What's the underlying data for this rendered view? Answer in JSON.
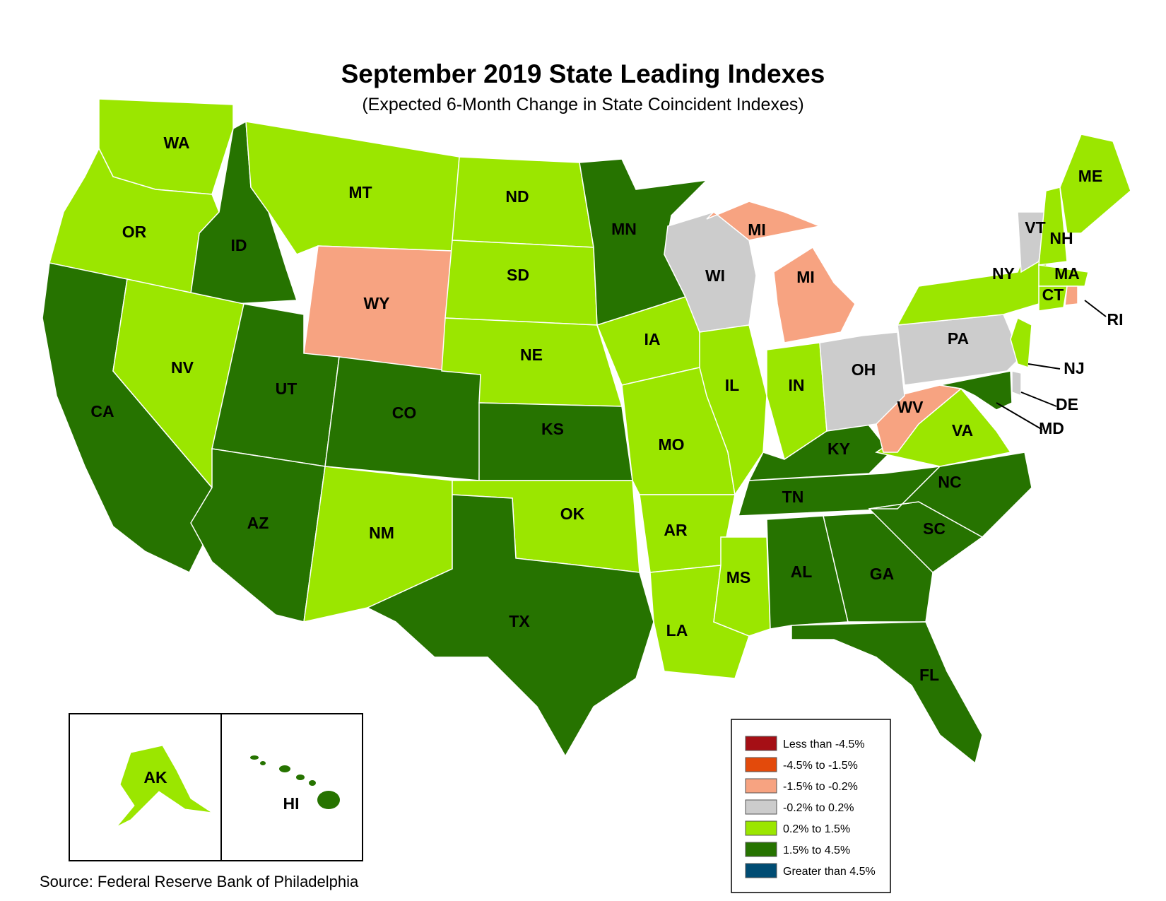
{
  "title": "September 2019 State Leading Indexes",
  "subtitle": "(Expected 6-Month Change in State Coincident Indexes)",
  "source": "Source: Federal Reserve Bank of Philadelphia",
  "colors": {
    "less_than_-4.5": "#a50f15",
    "-4.5_to_-1.5": "#e34a0b",
    "-1.5_to_-0.2": "#f7a381",
    "-0.2_to_0.2": "#cccccc",
    "0.2_to_1.5": "#9be600",
    "1.5_to_4.5": "#267300",
    "greater_than_4.5": "#004c73"
  },
  "legend": [
    {
      "label": "Less than -4.5%",
      "color": "#a50f15"
    },
    {
      "label": "-4.5% to -1.5%",
      "color": "#e34a0b"
    },
    {
      "label": "-1.5% to -0.2%",
      "color": "#f7a381"
    },
    {
      "label": "-0.2% to 0.2%",
      "color": "#cccccc"
    },
    {
      "label": "0.2% to 1.5%",
      "color": "#9be600"
    },
    {
      "label": "1.5% to 4.5%",
      "color": "#267300"
    },
    {
      "label": "Greater than 4.5%",
      "color": "#004c73"
    }
  ],
  "states": {
    "WA": {
      "label": "WA",
      "category": "0.2% to 1.5%"
    },
    "OR": {
      "label": "OR",
      "category": "0.2% to 1.5%"
    },
    "CA": {
      "label": "CA",
      "category": "1.5% to 4.5%"
    },
    "ID": {
      "label": "ID",
      "category": "1.5% to 4.5%"
    },
    "NV": {
      "label": "NV",
      "category": "0.2% to 1.5%"
    },
    "MT": {
      "label": "MT",
      "category": "0.2% to 1.5%"
    },
    "WY": {
      "label": "WY",
      "category": "-1.5% to -0.2%"
    },
    "UT": {
      "label": "UT",
      "category": "1.5% to 4.5%"
    },
    "AZ": {
      "label": "AZ",
      "category": "1.5% to 4.5%"
    },
    "CO": {
      "label": "CO",
      "category": "1.5% to 4.5%"
    },
    "NM": {
      "label": "NM",
      "category": "0.2% to 1.5%"
    },
    "ND": {
      "label": "ND",
      "category": "0.2% to 1.5%"
    },
    "SD": {
      "label": "SD",
      "category": "0.2% to 1.5%"
    },
    "NE": {
      "label": "NE",
      "category": "0.2% to 1.5%"
    },
    "KS": {
      "label": "KS",
      "category": "1.5% to 4.5%"
    },
    "OK": {
      "label": "OK",
      "category": "0.2% to 1.5%"
    },
    "TX": {
      "label": "TX",
      "category": "1.5% to 4.5%"
    },
    "MN": {
      "label": "MN",
      "category": "1.5% to 4.5%"
    },
    "IA": {
      "label": "IA",
      "category": "0.2% to 1.5%"
    },
    "MO": {
      "label": "MO",
      "category": "0.2% to 1.5%"
    },
    "AR": {
      "label": "AR",
      "category": "0.2% to 1.5%"
    },
    "LA": {
      "label": "LA",
      "category": "0.2% to 1.5%"
    },
    "WI": {
      "label": "WI",
      "category": "-0.2% to 0.2%"
    },
    "IL": {
      "label": "IL",
      "category": "0.2% to 1.5%"
    },
    "MS": {
      "label": "MS",
      "category": "0.2% to 1.5%"
    },
    "MI": {
      "label": "MI",
      "category": "-1.5% to -0.2%"
    },
    "IN": {
      "label": "IN",
      "category": "0.2% to 1.5%"
    },
    "KY": {
      "label": "KY",
      "category": "1.5% to 4.5%"
    },
    "TN": {
      "label": "TN",
      "category": "1.5% to 4.5%"
    },
    "AL": {
      "label": "AL",
      "category": "1.5% to 4.5%"
    },
    "OH": {
      "label": "OH",
      "category": "-0.2% to 0.2%"
    },
    "GA": {
      "label": "GA",
      "category": "1.5% to 4.5%"
    },
    "FL": {
      "label": "FL",
      "category": "1.5% to 4.5%"
    },
    "SC": {
      "label": "SC",
      "category": "1.5% to 4.5%"
    },
    "NC": {
      "label": "NC",
      "category": "1.5% to 4.5%"
    },
    "VA": {
      "label": "VA",
      "category": "0.2% to 1.5%"
    },
    "WV": {
      "label": "WV",
      "category": "-1.5% to -0.2%"
    },
    "PA": {
      "label": "PA",
      "category": "-0.2% to 0.2%"
    },
    "NY": {
      "label": "NY",
      "category": "0.2% to 1.5%"
    },
    "VT": {
      "label": "VT",
      "category": "-0.2% to 0.2%"
    },
    "NH": {
      "label": "NH",
      "category": "0.2% to 1.5%"
    },
    "ME": {
      "label": "ME",
      "category": "0.2% to 1.5%"
    },
    "MA": {
      "label": "MA",
      "category": "0.2% to 1.5%"
    },
    "CT": {
      "label": "CT",
      "category": "0.2% to 1.5%"
    },
    "RI": {
      "label": "RI",
      "category": "-1.5% to -0.2%"
    },
    "NJ": {
      "label": "NJ",
      "category": "0.2% to 1.5%"
    },
    "DE": {
      "label": "DE",
      "category": "-0.2% to 0.2%"
    },
    "MD": {
      "label": "MD",
      "category": "1.5% to 4.5%"
    },
    "AK": {
      "label": "AK",
      "category": "0.2% to 1.5%"
    },
    "HI": {
      "label": "HI",
      "category": "1.5% to 4.5%"
    }
  }
}
